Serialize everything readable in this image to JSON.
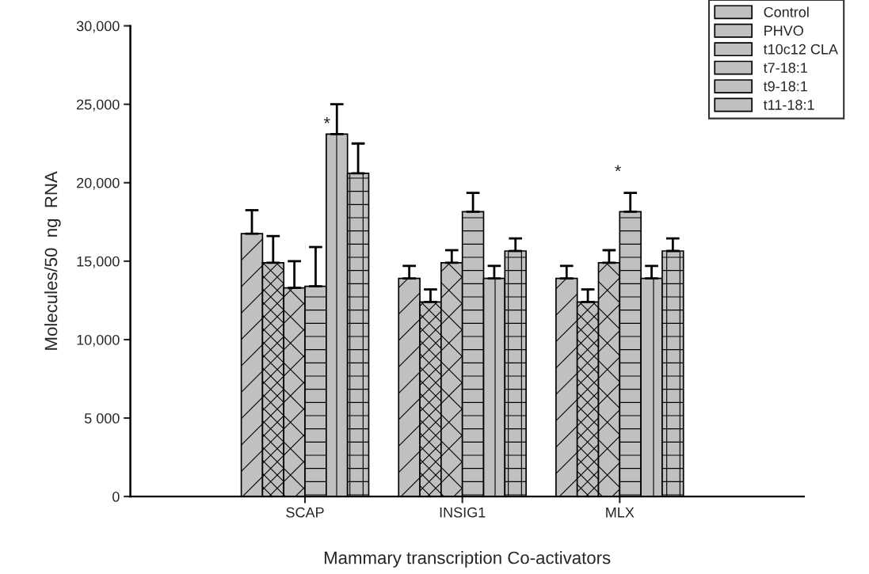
{
  "chart_data": {
    "type": "bar",
    "xlabel": "Mammary transcription Co-activators",
    "ylabel": "Molecules/50  ng  RNA",
    "categories": [
      "SCAP",
      "INSIG1",
      "MLX"
    ],
    "series": [
      {
        "name": "Control",
        "color": "#c0c0c0",
        "values": [
          16750,
          13900,
          13900
        ],
        "errors": [
          [
            16750,
            18250
          ],
          [
            13900,
            14700
          ],
          [
            13900,
            14700
          ]
        ]
      },
      {
        "name": "PHVO",
        "color": "#c0c0c0",
        "values": [
          14900,
          12400,
          12400
        ],
        "errors": [
          [
            14900,
            16600
          ],
          [
            12400,
            13200
          ],
          [
            12400,
            13200
          ]
        ]
      },
      {
        "name": "t10c12 CLA",
        "color": "#c0c0c0",
        "values": [
          13300,
          14900,
          14900
        ],
        "errors": [
          [
            13300,
            15000
          ],
          [
            14900,
            15700
          ],
          [
            14900,
            15700
          ]
        ]
      },
      {
        "name": "t7-18:1",
        "color": "#c0c0c0",
        "values": [
          13400,
          18150,
          18150
        ],
        "errors": [
          [
            13400,
            15900
          ],
          [
            18150,
            19350
          ],
          [
            18150,
            19350
          ]
        ]
      },
      {
        "name": "t9-18:1",
        "color": "#c0c0c0",
        "values": [
          23100,
          13900,
          13900
        ],
        "errors": [
          [
            23100,
            25000
          ],
          [
            13900,
            14700
          ],
          [
            13900,
            14700
          ]
        ]
      },
      {
        "name": "t11-18:1",
        "color": "#c0c0c0",
        "values": [
          20600,
          15650,
          15650
        ],
        "errors": [
          [
            20600,
            22500
          ],
          [
            15650,
            16450
          ],
          [
            15650,
            16450
          ]
        ]
      }
    ],
    "ylim": [
      0,
      30000
    ],
    "yticks": [
      0,
      {
        "value": 5000,
        "label": "5 000"
      },
      {
        "value": 10000,
        "label": "10,000"
      },
      {
        "value": 15000,
        "label": "15,000"
      },
      {
        "value": 20000,
        "label": "20,000"
      },
      {
        "value": 25000,
        "label": "25,000"
      },
      {
        "value": 30000,
        "label": "30,000"
      }
    ],
    "annotations": [
      "*",
      "*"
    ],
    "legend": "top right",
    "grid": false
  }
}
